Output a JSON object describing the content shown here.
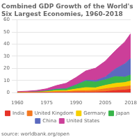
{
  "chart_data": {
    "type": "area",
    "stacked": true,
    "title": "Combined GDP Growth of the World's Six Largest Economies, 1960-2018",
    "annotations": [
      "source: worldbank.org/open"
    ],
    "x": [
      1960,
      1965,
      1970,
      1975,
      1980,
      1985,
      1990,
      1995,
      2000,
      2005,
      2010,
      2015,
      2018
    ],
    "series": [
      {
        "name": "India",
        "color": "#e63329",
        "values": [
          0.04,
          0.06,
          0.06,
          0.1,
          0.19,
          0.23,
          0.32,
          0.37,
          0.48,
          0.83,
          1.71,
          2.1,
          2.73
        ]
      },
      {
        "name": "United Kingdom",
        "color": "#f47920",
        "values": [
          0.07,
          0.1,
          0.13,
          0.24,
          0.55,
          0.57,
          1.09,
          1.18,
          1.5,
          2.29,
          2.43,
          2.86,
          2.83
        ]
      },
      {
        "name": "Germany",
        "color": "#f7d000",
        "values": [
          0.07,
          0.12,
          0.21,
          0.48,
          0.82,
          0.85,
          1.57,
          2.59,
          1.95,
          2.86,
          3.42,
          3.38,
          4.0
        ]
      },
      {
        "name": "Japan",
        "color": "#39b54a",
        "values": [
          0.04,
          0.09,
          0.21,
          0.5,
          1.07,
          1.4,
          3.14,
          5.33,
          4.73,
          4.57,
          5.7,
          4.39,
          4.97
        ]
      },
      {
        "name": "China",
        "color": "#5b6abf",
        "values": [
          0.06,
          0.07,
          0.09,
          0.16,
          0.3,
          0.31,
          0.36,
          0.73,
          1.21,
          2.29,
          6.09,
          11.06,
          13.61
        ]
      },
      {
        "name": "United States",
        "color": "#cc3f99",
        "values": [
          0.54,
          0.74,
          1.07,
          1.68,
          2.86,
          4.35,
          5.96,
          7.66,
          10.25,
          13.09,
          14.99,
          18.12,
          20.54
        ]
      }
    ],
    "xlim": [
      1960,
      2018
    ],
    "ylim": [
      0,
      60
    ],
    "xticks": [
      1960,
      1975,
      1990,
      2005,
      2018
    ],
    "yticks": [
      0,
      10,
      20,
      30,
      40,
      50,
      60
    ],
    "grid": "y",
    "legend": "bottom"
  }
}
